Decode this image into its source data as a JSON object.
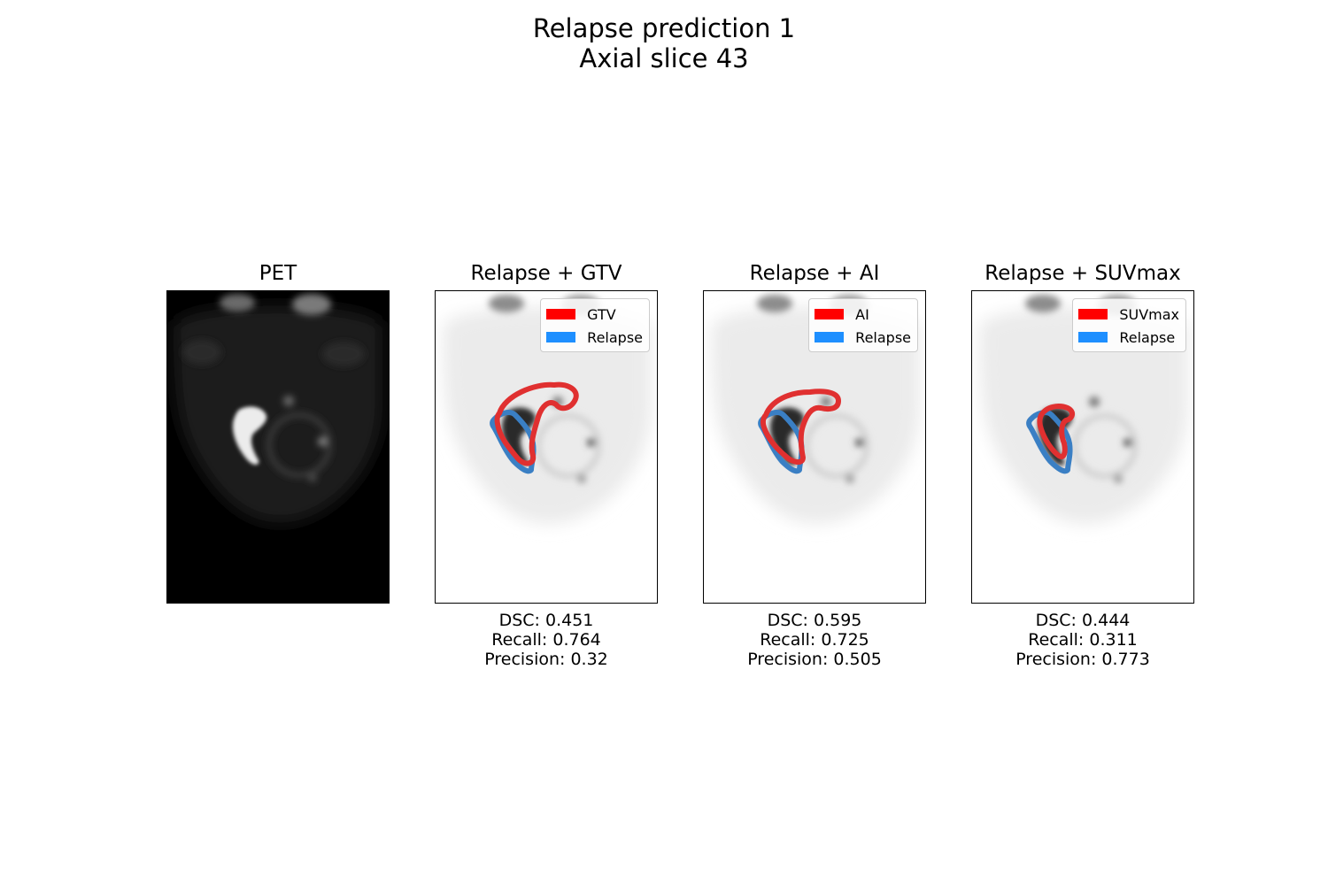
{
  "figure": {
    "title_line1": "Relapse prediction 1",
    "title_line2": "Axial slice 43"
  },
  "colors": {
    "relapse": "#1e8fff",
    "red_label": "#ff0000",
    "relapse_contour": "#3a7fc4",
    "red_contour": "#e03030"
  },
  "panels": [
    {
      "title": "PET"
    },
    {
      "title": "Relapse + GTV",
      "legend": [
        "GTV",
        "Relapse"
      ],
      "metrics": {
        "dsc": "DSC: 0.451",
        "recall": "Recall: 0.764",
        "precision": "Precision: 0.32"
      }
    },
    {
      "title": "Relapse + AI",
      "legend": [
        "AI",
        "Relapse"
      ],
      "metrics": {
        "dsc": "DSC: 0.595",
        "recall": "Recall: 0.725",
        "precision": "Precision: 0.505"
      }
    },
    {
      "title": "Relapse + SUVmax",
      "legend": [
        "SUVmax",
        "Relapse"
      ],
      "metrics": {
        "dsc": "DSC: 0.444",
        "recall": "Recall: 0.311",
        "precision": "Precision: 0.773"
      }
    }
  ]
}
